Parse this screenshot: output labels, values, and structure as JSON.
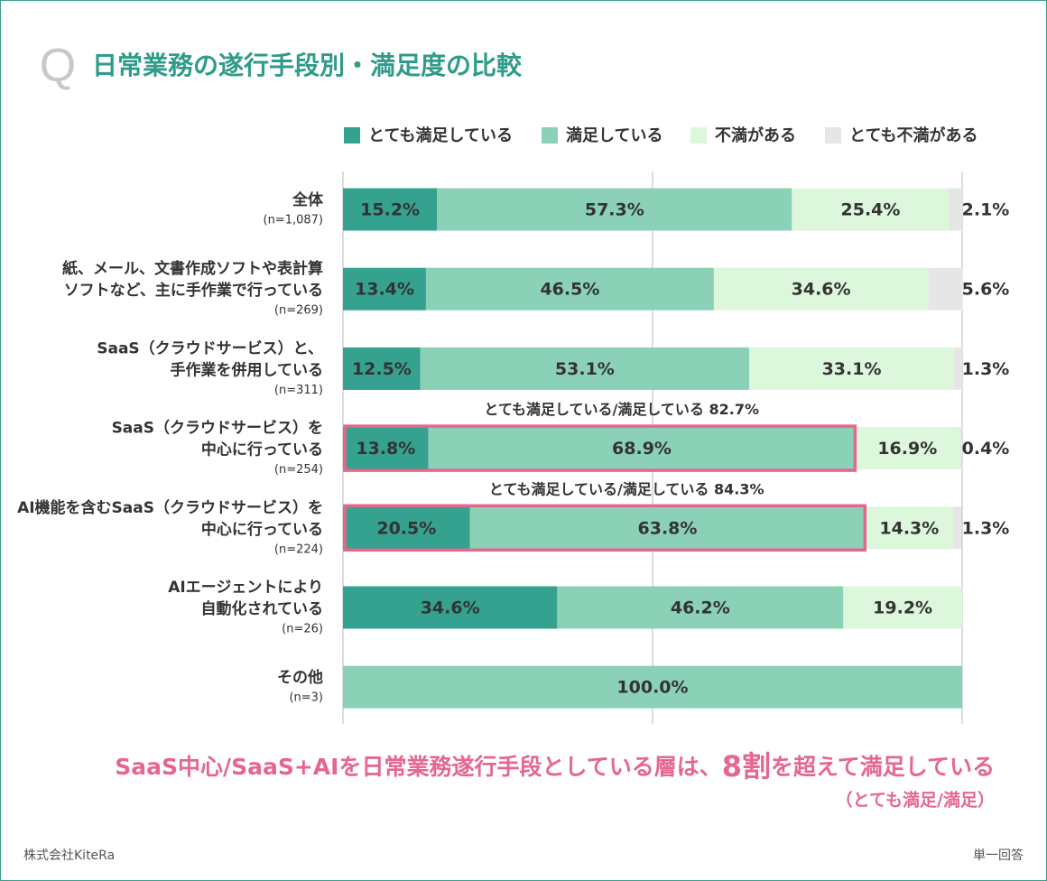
{
  "chart_data": {
    "type": "stacked-bar-horizontal",
    "q_mark": "Q",
    "title": "日常業務の遂行手段別・満足度の比較",
    "categories": [
      [
        "全体"
      ],
      [
        "紙、メール、文書作成ソフトや表計算",
        "ソフトなど、主に手作業で行っている"
      ],
      [
        "SaaS（クラウドサービス）と、",
        "手作業を併用している"
      ],
      [
        "SaaS（クラウドサービス）を",
        "中心に行っている"
      ],
      [
        "AI機能を含むSaaS（クラウドサービス）を",
        "中心に行っている"
      ],
      [
        "AIエージェントにより",
        "自動化されている"
      ],
      [
        "その他"
      ]
    ],
    "category_n": [
      "(n=1,087)",
      "(n=269)",
      "(n=311)",
      "(n=254)",
      "(n=224)",
      "(n=26)",
      "(n=3)"
    ],
    "series": [
      {
        "name": "とても満足している",
        "color": "#35a18f",
        "label_color": "#ffffff",
        "values": [
          15.2,
          13.4,
          12.5,
          13.8,
          20.5,
          34.6,
          null
        ],
        "value_labels": [
          "15.2%",
          "13.4%",
          "12.5%",
          "13.8%",
          "20.5%",
          "34.6%",
          null
        ]
      },
      {
        "name": "満足している",
        "color": "#8ad1b7",
        "label_color": "#333333",
        "values": [
          57.3,
          46.5,
          53.1,
          68.9,
          63.8,
          46.2,
          100
        ],
        "value_labels": [
          "57.3%",
          "46.5%",
          "53.1%",
          "68.9%",
          "63.8%",
          "46.2%",
          "100.0%"
        ]
      },
      {
        "name": "不満がある",
        "color": "#dcf7dc",
        "label_color": "#333333",
        "values": [
          25.4,
          34.6,
          33.1,
          16.9,
          14.3,
          19.2,
          null
        ],
        "value_labels": [
          "25.4%",
          "34.6%",
          "33.1%",
          "16.9%",
          "14.3%",
          "19.2%",
          null
        ]
      },
      {
        "name": "とても不満がある",
        "color": "#e6e6e6",
        "label_color": "#333333",
        "values": [
          2.1,
          5.6,
          1.3,
          0.4,
          1.3,
          null,
          null
        ],
        "value_labels": [
          "2.1%",
          "5.6%",
          "1.3%",
          "0.4%",
          "1.3%",
          null,
          null
        ]
      }
    ],
    "highlights": [
      null,
      null,
      null,
      "とても満足している/満足している 82.7%",
      "とても満足している/満足している 84.3%",
      null,
      null
    ],
    "highlight_color": "#e5678f",
    "xlim": [
      0,
      100
    ],
    "xticks": [
      0,
      50,
      100
    ],
    "tick_labels": false,
    "grid": true,
    "conclusion": [
      "SaaS中心/SaaS+AIを日常業務遂行手段としている層は、",
      "8割",
      "を超えて満足している"
    ],
    "conclusion_note": "（とても満足/満足）",
    "source": "株式会社KiteRa",
    "answer_type": "単一回答"
  }
}
